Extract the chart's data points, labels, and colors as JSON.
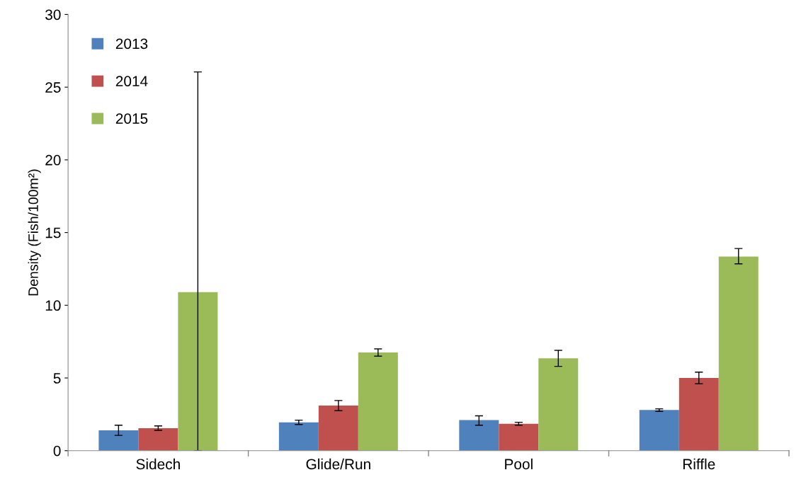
{
  "chart_data": {
    "type": "bar",
    "ylabel": "Density (Fish/100m²)",
    "categories": [
      "Sidech",
      "Glide/Run",
      "Pool",
      "Riffle"
    ],
    "series": [
      {
        "name": "2013",
        "color": "#4f81bd",
        "values": [
          1.4,
          1.95,
          2.1,
          2.8
        ],
        "errors": [
          [
            1.05,
            1.75
          ],
          [
            1.8,
            2.1
          ],
          [
            1.75,
            2.4
          ],
          [
            2.7,
            2.88
          ]
        ]
      },
      {
        "name": "2014",
        "color": "#c0504d",
        "values": [
          1.55,
          3.1,
          1.85,
          5.0
        ],
        "errors": [
          [
            1.4,
            1.7
          ],
          [
            2.75,
            3.45
          ],
          [
            1.75,
            1.95
          ],
          [
            4.6,
            5.4
          ]
        ]
      },
      {
        "name": "2015",
        "color": "#9bbb59",
        "values": [
          10.9,
          6.75,
          6.35,
          13.35
        ],
        "errors": [
          [
            0,
            26.05
          ],
          [
            6.5,
            7.0
          ],
          [
            5.8,
            6.9
          ],
          [
            12.85,
            13.9
          ]
        ]
      }
    ],
    "ylim": [
      0,
      30
    ],
    "yticks": [
      0,
      5,
      10,
      15,
      20,
      25,
      30
    ],
    "grid": false,
    "legend": "top left"
  }
}
